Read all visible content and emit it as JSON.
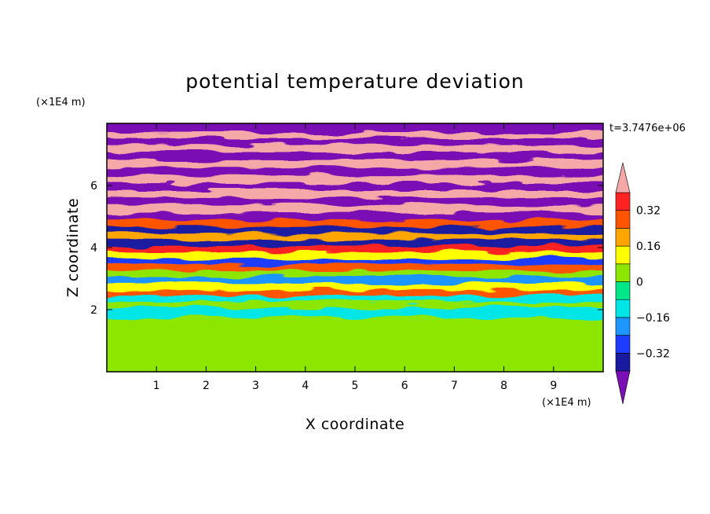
{
  "chart_data": {
    "type": "heatmap",
    "title": "potential temperature deviation",
    "xlabel": "X coordinate",
    "ylabel": "Z coordinate",
    "x_unit": "(×1E4 m)",
    "y_unit": "(×1E4 m)",
    "time_label": "t=3.7476e+06",
    "xlim": [
      0,
      10
    ],
    "ylim": [
      0,
      8
    ],
    "x_ticks": [
      1,
      2,
      3,
      4,
      5,
      6,
      7,
      8,
      9
    ],
    "y_ticks": [
      2,
      4,
      6
    ],
    "colorbar": {
      "levels": [
        -0.4,
        -0.32,
        -0.24,
        -0.16,
        -0.08,
        0,
        0.08,
        0.16,
        0.24,
        0.32,
        0.4
      ],
      "tick_labels": [
        "0.32",
        "0.16",
        "0",
        "−0.16",
        "−0.32"
      ],
      "tick_values": [
        0.32,
        0.16,
        0,
        -0.16,
        -0.32
      ],
      "colors": {
        "below_min": "#7a0fb4",
        "bins": [
          "#1a1aa0",
          "#1e3cff",
          "#1e96ff",
          "#00e6e6",
          "#00e688",
          "#8ce600",
          "#ffff00",
          "#ffa500",
          "#ff5500",
          "#ff2222"
        ],
        "above_max": "#f4a8a8"
      }
    },
    "bands": [
      {
        "z": 7.82,
        "value": -0.45
      },
      {
        "z": 7.62,
        "value": 0.45
      },
      {
        "z": 7.42,
        "value": -0.45
      },
      {
        "z": 7.18,
        "value": 0.45
      },
      {
        "z": 6.95,
        "value": -0.45
      },
      {
        "z": 6.7,
        "value": 0.45
      },
      {
        "z": 6.45,
        "value": -0.45
      },
      {
        "z": 6.2,
        "value": 0.45
      },
      {
        "z": 5.95,
        "value": -0.45
      },
      {
        "z": 5.72,
        "value": 0.45
      },
      {
        "z": 5.5,
        "value": -0.45
      },
      {
        "z": 5.25,
        "value": 0.45
      },
      {
        "z": 5.0,
        "value": -0.45
      },
      {
        "z": 4.78,
        "value": 0.3
      },
      {
        "z": 4.55,
        "value": -0.4
      },
      {
        "z": 4.35,
        "value": 0.2
      },
      {
        "z": 4.15,
        "value": -0.35
      },
      {
        "z": 3.95,
        "value": 0.35
      },
      {
        "z": 3.75,
        "value": 0.1
      },
      {
        "z": 3.55,
        "value": -0.3
      },
      {
        "z": 3.35,
        "value": 0.25
      },
      {
        "z": 3.15,
        "value": 0.05
      },
      {
        "z": 2.95,
        "value": -0.2
      },
      {
        "z": 2.75,
        "value": 0.15
      },
      {
        "z": 2.55,
        "value": 0.3
      },
      {
        "z": 2.35,
        "value": -0.1
      },
      {
        "z": 2.15,
        "value": 0.05
      },
      {
        "z": 2.0,
        "value": -0.15
      },
      {
        "z": 1.5,
        "value": 0.02
      },
      {
        "z": 1.0,
        "value": 0.02
      },
      {
        "z": 0.5,
        "value": 0.02
      },
      {
        "z": 0.1,
        "value": 0.06
      }
    ]
  }
}
